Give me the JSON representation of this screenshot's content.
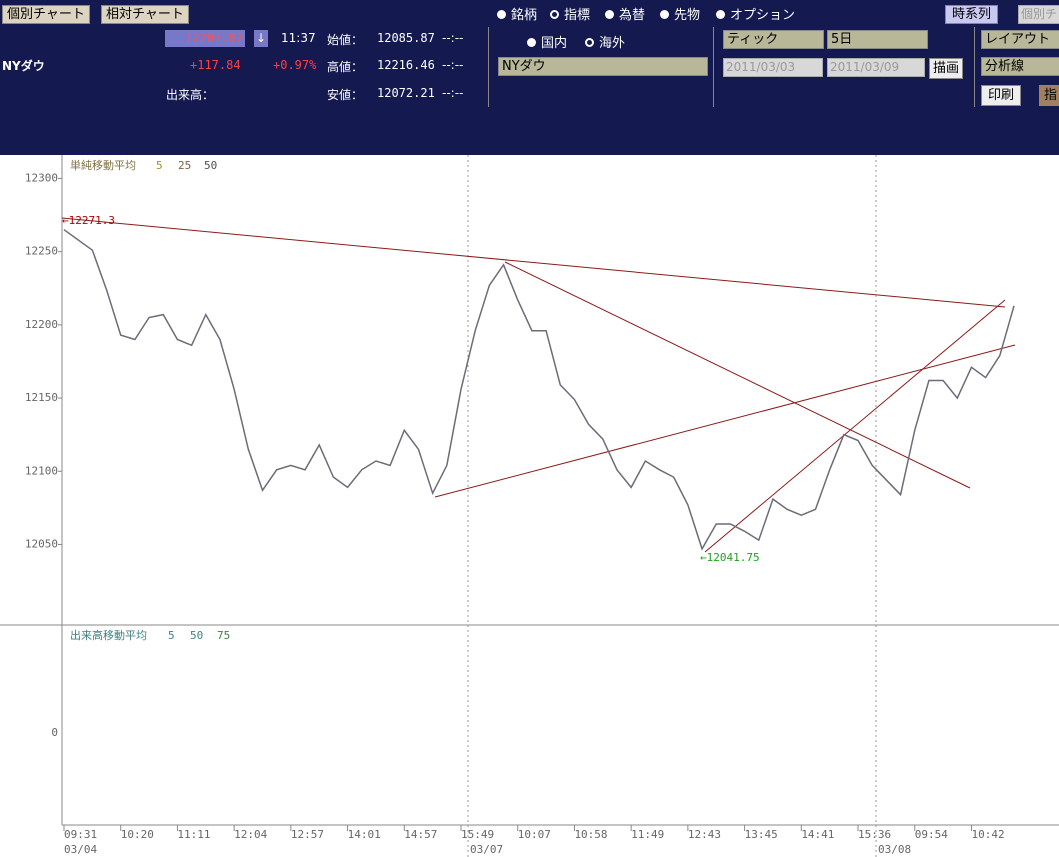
{
  "header": {
    "tabs": [
      "個別チャート",
      "相対チャート"
    ],
    "radios": [
      "銘柄",
      "指標",
      "為替",
      "先物",
      "オプション"
    ],
    "right_buttons": [
      "時系列",
      "個別チ"
    ],
    "price": "12207.87",
    "arrow": "↓",
    "time": "11:37",
    "name": "NYダウ",
    "change": "+117.84",
    "change_pct": "+0.97%",
    "open_label": "始値：",
    "open": "12085.87",
    "open_time": "--:--",
    "high_label": "高値：",
    "high": "12216.46",
    "high_time": "--:--",
    "volume_label": "出来高：",
    "low_label": "安値：",
    "low": "12072.21",
    "low_time": "--:--",
    "market_radios": [
      "国内",
      "海外"
    ],
    "symbol_select": "NYダウ",
    "interval_select": "ティック",
    "period_select": "5日",
    "date_from": "2011/03/03",
    "date_to": "2011/03/09",
    "draw_button": "描画",
    "layout_select": "レイアウト",
    "analysis_select": "分析線",
    "print_button": "印刷",
    "cut_button": "指"
  },
  "chart_data": {
    "type": "line",
    "legend": {
      "title": "単純移動平均",
      "periods": [
        "5",
        "25",
        "50"
      ]
    },
    "volume_legend": {
      "title": "出来高移動平均",
      "periods": [
        "5",
        "50",
        "75"
      ]
    },
    "categories": [
      "09:31",
      null,
      null,
      null,
      "10:20",
      null,
      null,
      null,
      "11:11",
      null,
      null,
      null,
      "12:04",
      null,
      null,
      null,
      "12:57",
      null,
      null,
      null,
      "14:01",
      null,
      null,
      null,
      "14:57",
      null,
      null,
      null,
      "15:49",
      null,
      null,
      null,
      "10:07",
      null,
      null,
      null,
      "10:58",
      null,
      null,
      null,
      "11:49",
      null,
      null,
      null,
      "12:43",
      null,
      null,
      null,
      "13:45",
      null,
      null,
      null,
      "14:41",
      null,
      null,
      null,
      "15:36",
      null,
      null,
      null,
      "09:54",
      null,
      null,
      null,
      "10:42",
      null,
      null,
      null
    ],
    "date_labels": [
      "03/04",
      "03/07",
      "03/08"
    ],
    "series": [
      {
        "name": "NYダウ",
        "color": "#6e6a78",
        "values": [
          12265,
          12258,
          12251,
          12224,
          12193,
          12190,
          12205,
          12207,
          12190,
          12186,
          12207,
          12190,
          12156,
          12115,
          12087,
          12101,
          12104,
          12101,
          12118,
          12096,
          12089,
          12101,
          12107,
          12104,
          12128,
          12115,
          12085,
          12104,
          12156,
          12196,
          12227,
          12241,
          12217,
          12196,
          12196,
          12159,
          12149,
          12132,
          12122,
          12101,
          12089,
          12107,
          12101,
          12096,
          12077,
          12047,
          12064,
          12064,
          12059,
          12053,
          12081,
          12074,
          12070,
          12074,
          12101,
          12125,
          12121,
          12104,
          12094,
          12084,
          12128,
          12162,
          12162,
          12150,
          12171,
          12164,
          12179,
          12213
        ]
      }
    ],
    "ylim": [
      11995,
      12316
    ],
    "yticks": [
      12050,
      12100,
      12150,
      12200,
      12250,
      12300
    ],
    "volume_yticks": [
      0
    ],
    "annotations": {
      "high": "←12271.3",
      "low": "←12041.75"
    }
  }
}
